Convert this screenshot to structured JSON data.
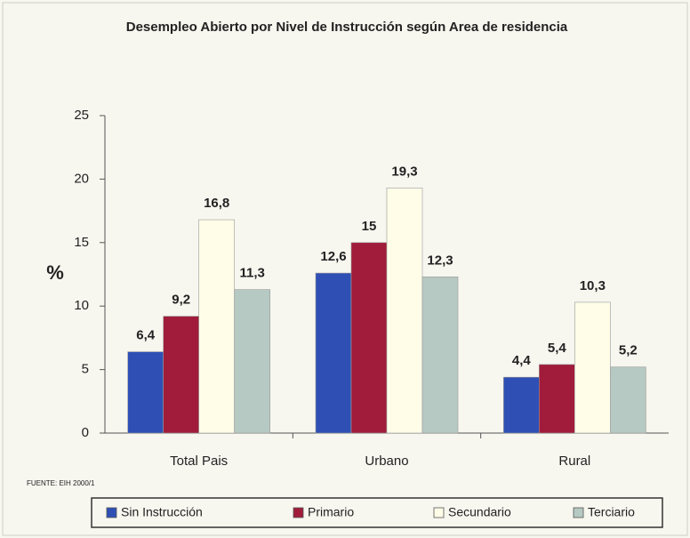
{
  "chart_data": {
    "type": "bar",
    "title": "Desempleo Abierto por Nivel de Instrucción según Area de residencia",
    "y_label": "%",
    "source": "FUENTE: EIH 2000/1",
    "categories": [
      "Total Pais",
      "Urbano",
      "Rural"
    ],
    "series": [
      {
        "name": "Sin Instrucción",
        "color": "#2f4fb5",
        "values": [
          6.4,
          12.6,
          4.4
        ],
        "value_labels": [
          "6,4",
          "12,6",
          "4,4"
        ]
      },
      {
        "name": "Primario",
        "color": "#a01c3a",
        "values": [
          9.2,
          15,
          5.4
        ],
        "value_labels": [
          "9,2",
          "15",
          "5,4"
        ]
      },
      {
        "name": "Secundario",
        "color": "#fffde8",
        "values": [
          16.8,
          19.3,
          10.3
        ],
        "value_labels": [
          "16,8",
          "19,3",
          "10,3"
        ]
      },
      {
        "name": "Terciario",
        "color": "#b6c9c3",
        "values": [
          11.3,
          12.3,
          5.2
        ],
        "value_labels": [
          "11,3",
          "12,3",
          "5,2"
        ]
      }
    ],
    "ylim": [
      0,
      25
    ],
    "yticks": [
      0,
      5,
      10,
      15,
      20,
      25
    ],
    "grid": false
  }
}
